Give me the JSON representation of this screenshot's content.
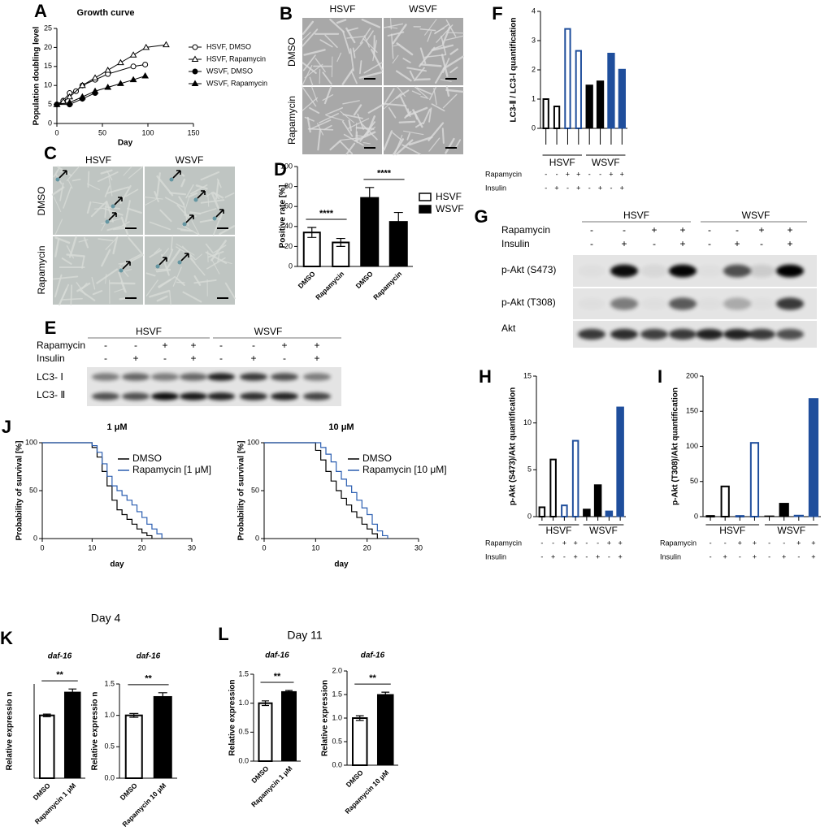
{
  "panel_labels": [
    "A",
    "B",
    "C",
    "D",
    "E",
    "F",
    "G",
    "H",
    "I",
    "J",
    "K",
    "L"
  ],
  "headers": [
    "Day 4",
    "Day 11"
  ],
  "image_panels": {
    "B": {
      "columns": [
        "HSVF",
        "WSVF"
      ],
      "rows": [
        "DMSO",
        "Rapamycin"
      ]
    },
    "C": {
      "columns": [
        "HSVF",
        "WSVF"
      ],
      "rows": [
        "DMSO",
        "Rapamycin"
      ]
    },
    "E": {
      "groups": [
        "HSVF",
        "WSVF"
      ],
      "conditions": [
        {
          "label": "Rapamycin",
          "marks": [
            "-",
            "-",
            "+",
            "+",
            "-",
            "-",
            "+",
            "+"
          ]
        },
        {
          "label": "Insulin",
          "marks": [
            "-",
            "+",
            "-",
            "+",
            "-",
            "+",
            "-",
            "+"
          ]
        }
      ],
      "bands": [
        "LC3- Ⅰ",
        "LC3- Ⅱ"
      ]
    },
    "G": {
      "groups": [
        "HSVF",
        "WSVF"
      ],
      "conditions": [
        {
          "label": "Rapamycin",
          "marks": [
            "-",
            "-",
            "+",
            "+",
            "-",
            "-",
            "+",
            "+"
          ]
        },
        {
          "label": "Insulin",
          "marks": [
            "-",
            "+",
            "-",
            "+",
            "-",
            "+",
            "-",
            "+"
          ]
        }
      ],
      "bands": [
        "p-Akt (S473)",
        "p-Akt (T308)",
        "Akt"
      ]
    }
  },
  "chart_data": [
    {
      "type": "line",
      "title": "Growth curve",
      "xlabel": "Day",
      "ylabel": "Population doubling level",
      "xlim": [
        0,
        150
      ],
      "xticks": [
        0,
        50,
        100,
        150
      ],
      "ylim": [
        0,
        25
      ],
      "yticks": [
        0,
        5,
        10,
        15,
        20,
        25
      ],
      "series": [
        {
          "name": "HSVF, DMSO",
          "color": "#000000",
          "marker": "circle-open",
          "x": [
            0,
            7,
            14,
            21,
            28,
            42,
            56,
            84,
            97
          ],
          "values": [
            5,
            6,
            8,
            8.5,
            10,
            11.5,
            13,
            15,
            15.5
          ]
        },
        {
          "name": "HSVF, Rapamycin",
          "color": "#000000",
          "marker": "triangle-open",
          "x": [
            0,
            7,
            14,
            28,
            42,
            56,
            70,
            84,
            98,
            120
          ],
          "values": [
            5,
            5.8,
            7,
            10,
            12,
            14,
            16,
            18,
            20,
            20.7
          ]
        },
        {
          "name": "WSVF, DMSO",
          "color": "#000000",
          "marker": "circle",
          "x": [
            0,
            14,
            28,
            42
          ],
          "values": [
            5,
            5,
            6.5,
            8
          ]
        },
        {
          "name": "WSVF, Rapamycin",
          "color": "#000000",
          "marker": "triangle",
          "x": [
            0,
            14,
            28,
            42,
            56,
            70,
            84,
            97
          ],
          "values": [
            5,
            5.5,
            7,
            8.5,
            9.5,
            10.5,
            11.5,
            12.5
          ]
        }
      ]
    },
    {
      "type": "bar",
      "ylabel": "Positive rate [%]",
      "ylim": [
        0,
        100
      ],
      "yticks": [
        0,
        20,
        40,
        60,
        80,
        100
      ],
      "categories": [
        "DMSO",
        "Rapamycin",
        "DMSO",
        "Rapamycin"
      ],
      "values": [
        34,
        24,
        69,
        45
      ],
      "errors": [
        5,
        4,
        10,
        9
      ],
      "colors": [
        "#000000",
        "#000000",
        "#000000",
        "#000000"
      ],
      "filled": [
        false,
        false,
        true,
        true
      ],
      "annotations": [
        "****",
        "****"
      ],
      "legend": [
        {
          "name": "HSVF",
          "filled": false
        },
        {
          "name": "WSVF",
          "filled": true
        }
      ]
    },
    {
      "type": "bar",
      "ylabel": "LC3-Ⅱ / LC3-Ⅰ quantification",
      "ylim": [
        0,
        4
      ],
      "yticks": [
        0,
        1,
        2,
        3,
        4
      ],
      "values": [
        1.0,
        0.75,
        3.4,
        2.65,
        1.48,
        1.62,
        2.57,
        2.02
      ],
      "colors": [
        "#000000",
        "#000000",
        "#1f4e9c",
        "#1f4e9c",
        "#000000",
        "#000000",
        "#1f4e9c",
        "#1f4e9c"
      ],
      "filled": [
        false,
        false,
        false,
        false,
        true,
        true,
        true,
        true
      ],
      "groups": [
        "HSVF",
        "WSVF"
      ],
      "conditions": [
        {
          "label": "Rapamycin",
          "marks": [
            "-",
            "-",
            "+",
            "+",
            "-",
            "-",
            "+",
            "+"
          ]
        },
        {
          "label": "Insulin",
          "marks": [
            "-",
            "+",
            "-",
            "+",
            "-",
            "+",
            "-",
            "+"
          ]
        }
      ]
    },
    {
      "type": "bar",
      "ylabel": "p-Akt (S473)/Akt quantification",
      "ylim": [
        0,
        15
      ],
      "yticks": [
        0,
        5,
        10,
        15
      ],
      "values": [
        1.0,
        6.1,
        1.2,
        8.1,
        0.8,
        3.4,
        0.6,
        11.7
      ],
      "colors": [
        "#000000",
        "#000000",
        "#1f4e9c",
        "#1f4e9c",
        "#000000",
        "#000000",
        "#1f4e9c",
        "#1f4e9c"
      ],
      "filled": [
        false,
        false,
        false,
        false,
        true,
        true,
        true,
        true
      ],
      "groups": [
        "HSVF",
        "WSVF"
      ],
      "conditions": [
        {
          "label": "Rapamycin",
          "marks": [
            "-",
            "-",
            "+",
            "+",
            "-",
            "-",
            "+",
            "+"
          ]
        },
        {
          "label": "Insulin",
          "marks": [
            "-",
            "+",
            "-",
            "+",
            "-",
            "+",
            "-",
            "+"
          ]
        }
      ]
    },
    {
      "type": "bar",
      "ylabel": "p-Akt (T308)/Akt quantification",
      "ylim": [
        0,
        200
      ],
      "yticks": [
        0,
        50,
        100,
        150,
        200
      ],
      "values": [
        1,
        43,
        1,
        105,
        1,
        19,
        2,
        168
      ],
      "colors": [
        "#000000",
        "#000000",
        "#1f4e9c",
        "#1f4e9c",
        "#000000",
        "#000000",
        "#1f4e9c",
        "#1f4e9c"
      ],
      "filled": [
        false,
        false,
        false,
        false,
        true,
        true,
        true,
        true
      ],
      "groups": [
        "HSVF",
        "WSVF"
      ],
      "conditions": [
        {
          "label": "Rapamycin",
          "marks": [
            "-",
            "-",
            "+",
            "+",
            "-",
            "-",
            "+",
            "+"
          ]
        },
        {
          "label": "Insulin",
          "marks": [
            "-",
            "+",
            "-",
            "+",
            "-",
            "+",
            "-",
            "+"
          ]
        }
      ]
    },
    {
      "type": "survival",
      "title": "1 μM",
      "xlabel": "day",
      "ylabel": "Probability of survival [%]",
      "xlim": [
        0,
        30
      ],
      "xticks": [
        0,
        10,
        20,
        30
      ],
      "ylim": [
        0,
        100
      ],
      "yticks": [
        0,
        50,
        100
      ],
      "series": [
        {
          "name": "DMSO",
          "color": "#000000",
          "x": [
            0,
            9,
            10,
            11,
            12,
            13,
            14,
            15,
            16,
            17,
            18,
            19,
            20,
            21,
            22
          ],
          "values": [
            100,
            100,
            95,
            85,
            70,
            55,
            40,
            30,
            25,
            20,
            15,
            10,
            6,
            3,
            0
          ]
        },
        {
          "name": "Rapamycin [1 μM]",
          "color": "#2a5db0",
          "x": [
            0,
            9,
            10,
            11,
            12,
            13,
            14,
            15,
            16,
            17,
            18,
            19,
            20,
            21,
            22,
            23,
            24
          ],
          "values": [
            100,
            100,
            97,
            90,
            78,
            65,
            55,
            50,
            45,
            40,
            35,
            28,
            22,
            15,
            10,
            5,
            0
          ]
        }
      ]
    },
    {
      "type": "survival",
      "title": "10 μM",
      "xlabel": "day",
      "ylabel": "Probability of survival [%]",
      "xlim": [
        0,
        30
      ],
      "xticks": [
        0,
        10,
        20,
        30
      ],
      "ylim": [
        0,
        100
      ],
      "yticks": [
        0,
        50,
        100
      ],
      "series": [
        {
          "name": "DMSO",
          "color": "#000000",
          "x": [
            0,
            9,
            10,
            11,
            12,
            13,
            14,
            15,
            16,
            17,
            18,
            19,
            20,
            21,
            22
          ],
          "values": [
            100,
            100,
            92,
            82,
            70,
            60,
            50,
            42,
            35,
            28,
            22,
            15,
            10,
            5,
            0
          ]
        },
        {
          "name": "Rapamycin [10 μM]",
          "color": "#2a5db0",
          "x": [
            0,
            10,
            11,
            12,
            13,
            14,
            15,
            16,
            17,
            18,
            19,
            20,
            21,
            22,
            23,
            24
          ],
          "values": [
            100,
            100,
            95,
            88,
            80,
            70,
            62,
            55,
            48,
            40,
            32,
            25,
            15,
            8,
            3,
            0
          ]
        }
      ]
    },
    {
      "type": "bar",
      "title": "daf-16",
      "ylabel": "Relative expressio n",
      "ylim": [
        0,
        1.5
      ],
      "yticks": [],
      "categories": [
        "DMSO",
        "Rapamycin 1 μM"
      ],
      "values": [
        1.0,
        1.37
      ],
      "errors": [
        0.02,
        0.05
      ],
      "colors": [
        "#000000",
        "#000000"
      ],
      "filled": [
        false,
        true
      ],
      "annotations": [
        "**"
      ]
    },
    {
      "type": "bar",
      "title": "daf-16",
      "ylabel": "Relative expressio n",
      "ylim": [
        0,
        1.5
      ],
      "yticks": [
        {
          "value": 0,
          "label": "0.0"
        },
        0.5,
        {
          "value": 1,
          "label": "1.0"
        },
        1.5
      ],
      "categories": [
        "DMSO",
        "Rapamycin 10 μM"
      ],
      "values": [
        1.0,
        1.3
      ],
      "errors": [
        0.03,
        0.06
      ],
      "colors": [
        "#000000",
        "#000000"
      ],
      "filled": [
        false,
        true
      ],
      "annotations": [
        "**"
      ]
    },
    {
      "type": "bar",
      "title": "daf-16",
      "ylabel": "Relative expression",
      "ylim": [
        0,
        1.5
      ],
      "yticks": [
        {
          "value": 0,
          "label": "0.0"
        },
        0.5,
        {
          "value": 1,
          "label": "1.0"
        },
        1.5
      ],
      "categories": [
        "DMSO",
        "Rapamycin 1 μM"
      ],
      "values": [
        1.0,
        1.2
      ],
      "errors": [
        0.04,
        0.02
      ],
      "colors": [
        "#000000",
        "#000000"
      ],
      "filled": [
        false,
        true
      ],
      "annotations": [
        "**"
      ]
    },
    {
      "type": "bar",
      "title": "daf-16",
      "ylabel": "Relative expression",
      "ylim": [
        0,
        2
      ],
      "yticks": [
        {
          "value": 0,
          "label": "0.0"
        },
        0.5,
        {
          "value": 1,
          "label": "1.0"
        },
        1.5,
        {
          "value": 2,
          "label": "2.0"
        }
      ],
      "categories": [
        "DMSO",
        "Rapamycin 10 μM"
      ],
      "values": [
        1.0,
        1.5
      ],
      "errors": [
        0.05,
        0.05
      ],
      "colors": [
        "#000000",
        "#000000"
      ],
      "filled": [
        false,
        true
      ],
      "annotations": [
        "**"
      ]
    }
  ]
}
